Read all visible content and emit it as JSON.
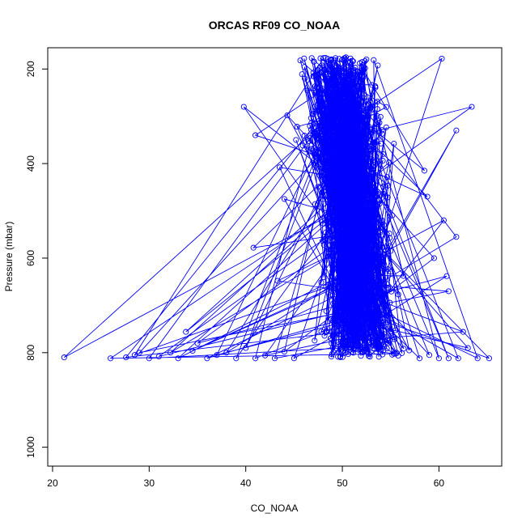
{
  "chart_data": {
    "type": "scatter",
    "title": "ORCAS RF09 CO_NOAA",
    "xlabel": "CO_NOAA",
    "ylabel": "Pressure (mbar)",
    "xlim": [
      19.5,
      66.5
    ],
    "ylim": [
      1040,
      155
    ],
    "y_reversed": true,
    "x_ticks": [
      20,
      30,
      40,
      50,
      60
    ],
    "y_ticks": [
      200,
      400,
      600,
      800,
      1000
    ],
    "series_color": "#0000ff",
    "marker": "open-circle",
    "connected": true,
    "grid": false,
    "legend": "none",
    "surface_points": [
      {
        "x": 21.2,
        "y": 810
      },
      {
        "x": 26.0,
        "y": 812
      },
      {
        "x": 27.6,
        "y": 810
      },
      {
        "x": 28.5,
        "y": 805
      },
      {
        "x": 29.0,
        "y": 800
      },
      {
        "x": 30.0,
        "y": 812
      },
      {
        "x": 31.0,
        "y": 808
      },
      {
        "x": 32.2,
        "y": 800
      },
      {
        "x": 33.0,
        "y": 812
      },
      {
        "x": 33.8,
        "y": 756
      },
      {
        "x": 34.5,
        "y": 796
      },
      {
        "x": 35.0,
        "y": 780
      },
      {
        "x": 36.0,
        "y": 812
      },
      {
        "x": 37.0,
        "y": 805
      },
      {
        "x": 38.0,
        "y": 800
      },
      {
        "x": 39.0,
        "y": 812
      },
      {
        "x": 40.0,
        "y": 790
      },
      {
        "x": 41.0,
        "y": 812
      },
      {
        "x": 42.0,
        "y": 806
      },
      {
        "x": 43.0,
        "y": 812
      },
      {
        "x": 44.0,
        "y": 798
      },
      {
        "x": 45.0,
        "y": 812
      },
      {
        "x": 58.0,
        "y": 812
      },
      {
        "x": 59.0,
        "y": 805
      },
      {
        "x": 60.0,
        "y": 812
      },
      {
        "x": 61.0,
        "y": 812
      },
      {
        "x": 62.0,
        "y": 812
      },
      {
        "x": 62.5,
        "y": 756
      },
      {
        "x": 63.0,
        "y": 790
      },
      {
        "x": 64.0,
        "y": 812
      },
      {
        "x": 65.2,
        "y": 812
      }
    ],
    "outlier_points": [
      {
        "x": 39.8,
        "y": 280
      },
      {
        "x": 41.0,
        "y": 340
      },
      {
        "x": 40.8,
        "y": 578
      },
      {
        "x": 43.5,
        "y": 408
      },
      {
        "x": 44.0,
        "y": 475
      },
      {
        "x": 43.3,
        "y": 648
      },
      {
        "x": 44.3,
        "y": 298
      },
      {
        "x": 45.2,
        "y": 350
      },
      {
        "x": 61.8,
        "y": 330
      },
      {
        "x": 63.4,
        "y": 280
      },
      {
        "x": 60.3,
        "y": 178
      },
      {
        "x": 61.0,
        "y": 670
      },
      {
        "x": 60.8,
        "y": 638
      },
      {
        "x": 60.5,
        "y": 520
      },
      {
        "x": 61.8,
        "y": 555
      },
      {
        "x": 58.8,
        "y": 470
      },
      {
        "x": 59.5,
        "y": 600
      },
      {
        "x": 58.5,
        "y": 415
      }
    ],
    "band_profile": {
      "description": "Dense cloud of observations between about 175 and 810 mbar, centred near 50-52",
      "levels": [
        {
          "y": 175,
          "center": 49.5,
          "spread": 3.5
        },
        {
          "y": 300,
          "center": 50.0,
          "spread": 4.0
        },
        {
          "y": 420,
          "center": 50.5,
          "spread": 3.5
        },
        {
          "y": 550,
          "center": 51.5,
          "spread": 3.5
        },
        {
          "y": 680,
          "center": 52.0,
          "spread": 3.5
        },
        {
          "y": 770,
          "center": 52.0,
          "spread": 4.0
        },
        {
          "y": 810,
          "center": 52.0,
          "spread": 5.0
        }
      ],
      "count": 1300
    }
  }
}
